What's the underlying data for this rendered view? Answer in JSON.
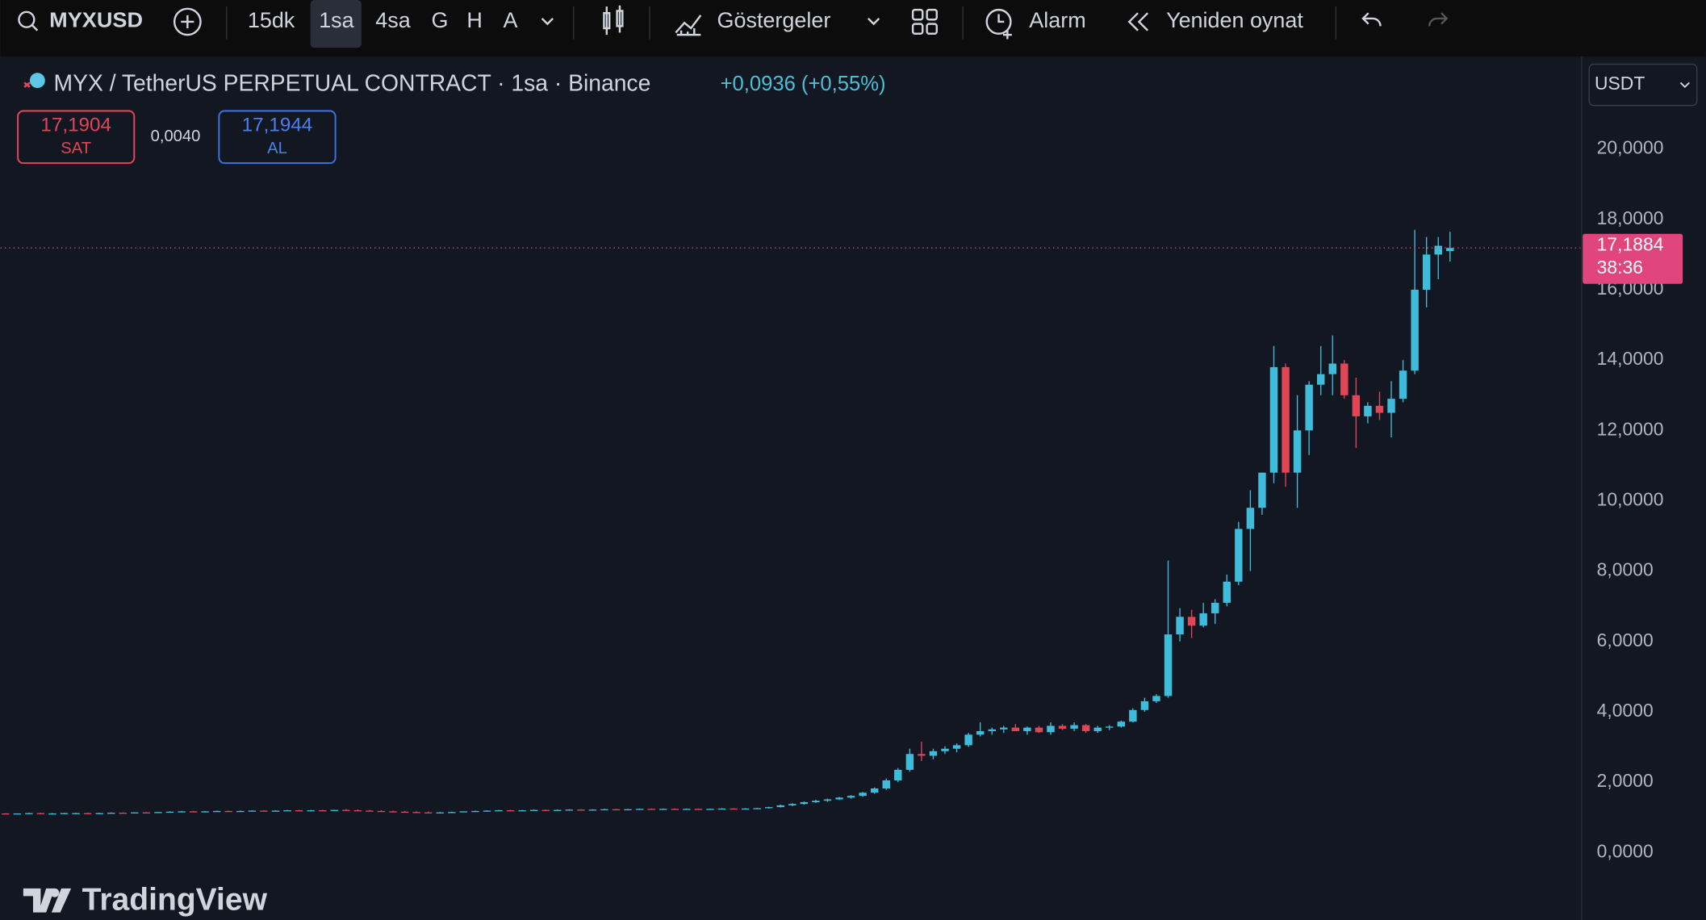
{
  "toolbar": {
    "symbol": "MYXUSD",
    "intervals": [
      "15dk",
      "1sa",
      "4sa",
      "G",
      "H",
      "A"
    ],
    "indicators": "Göstergeler",
    "alarm": "Alarm",
    "replay": "Yeniden oynat"
  },
  "legend": {
    "title": "MYX / TetherUS PERPETUAL CONTRACT · 1sa · Binance",
    "change": "+0,0936 (+0,55%)",
    "sell_price": "17,1904",
    "sell_label": "SAT",
    "spread": "0,0040",
    "buy_price": "17,1944",
    "buy_label": "AL"
  },
  "currency": "USDT",
  "countdown": "38:36",
  "branding": "TradingView",
  "chart_data": {
    "type": "candlestick",
    "up_color": "#3fbcd9",
    "down_color": "#e04656",
    "ylim": [
      -1.92,
      22.63
    ],
    "yticks": [
      {
        "value": 0,
        "label": "0,0000"
      },
      {
        "value": 2,
        "label": "2,0000"
      },
      {
        "value": 4,
        "label": "4,0000"
      },
      {
        "value": 6,
        "label": "6,0000"
      },
      {
        "value": 8,
        "label": "8,0000"
      },
      {
        "value": 10,
        "label": "10,0000"
      },
      {
        "value": 12,
        "label": "12,0000"
      },
      {
        "value": 14,
        "label": "14,0000"
      },
      {
        "value": 16,
        "label": "16,0000"
      },
      {
        "value": 18,
        "label": "18,0000"
      },
      {
        "value": 20,
        "label": "20,0000"
      }
    ],
    "last_price": {
      "value": 17.1884,
      "label": "17,1884"
    },
    "candles": [
      [
        1.1,
        1.12,
        1.09,
        1.11
      ],
      [
        1.11,
        1.12,
        1.1,
        1.1
      ],
      [
        1.1,
        1.11,
        1.09,
        1.11
      ],
      [
        1.11,
        1.13,
        1.1,
        1.12
      ],
      [
        1.12,
        1.13,
        1.1,
        1.11
      ],
      [
        1.11,
        1.12,
        1.1,
        1.11
      ],
      [
        1.11,
        1.13,
        1.1,
        1.12
      ],
      [
        1.12,
        1.13,
        1.11,
        1.12
      ],
      [
        1.12,
        1.13,
        1.11,
        1.11
      ],
      [
        1.11,
        1.13,
        1.1,
        1.12
      ],
      [
        1.12,
        1.14,
        1.11,
        1.13
      ],
      [
        1.13,
        1.14,
        1.12,
        1.12
      ],
      [
        1.12,
        1.14,
        1.11,
        1.14
      ],
      [
        1.14,
        1.15,
        1.13,
        1.13
      ],
      [
        1.13,
        1.15,
        1.12,
        1.15
      ],
      [
        1.15,
        1.17,
        1.14,
        1.16
      ],
      [
        1.16,
        1.18,
        1.15,
        1.17
      ],
      [
        1.17,
        1.18,
        1.15,
        1.16
      ],
      [
        1.16,
        1.18,
        1.15,
        1.17
      ],
      [
        1.17,
        1.19,
        1.16,
        1.18
      ],
      [
        1.18,
        1.19,
        1.16,
        1.17
      ],
      [
        1.17,
        1.19,
        1.16,
        1.18
      ],
      [
        1.18,
        1.2,
        1.17,
        1.19
      ],
      [
        1.19,
        1.2,
        1.17,
        1.18
      ],
      [
        1.18,
        1.2,
        1.17,
        1.19
      ],
      [
        1.19,
        1.21,
        1.18,
        1.2
      ],
      [
        1.2,
        1.21,
        1.18,
        1.19
      ],
      [
        1.19,
        1.21,
        1.18,
        1.2
      ],
      [
        1.2,
        1.21,
        1.18,
        1.19
      ],
      [
        1.19,
        1.21,
        1.18,
        1.21
      ],
      [
        1.21,
        1.23,
        1.19,
        1.2
      ],
      [
        1.2,
        1.22,
        1.18,
        1.19
      ],
      [
        1.19,
        1.21,
        1.17,
        1.18
      ],
      [
        1.18,
        1.2,
        1.16,
        1.17
      ],
      [
        1.17,
        1.19,
        1.15,
        1.16
      ],
      [
        1.16,
        1.18,
        1.14,
        1.15
      ],
      [
        1.15,
        1.17,
        1.13,
        1.14
      ],
      [
        1.14,
        1.16,
        1.12,
        1.13
      ],
      [
        1.13,
        1.15,
        1.11,
        1.14
      ],
      [
        1.14,
        1.16,
        1.13,
        1.15
      ],
      [
        1.15,
        1.17,
        1.14,
        1.17
      ],
      [
        1.17,
        1.19,
        1.16,
        1.18
      ],
      [
        1.18,
        1.2,
        1.17,
        1.19
      ],
      [
        1.19,
        1.21,
        1.18,
        1.2
      ],
      [
        1.2,
        1.21,
        1.18,
        1.19
      ],
      [
        1.19,
        1.21,
        1.18,
        1.2
      ],
      [
        1.2,
        1.22,
        1.19,
        1.21
      ],
      [
        1.21,
        1.22,
        1.19,
        1.2
      ],
      [
        1.2,
        1.22,
        1.19,
        1.21
      ],
      [
        1.21,
        1.23,
        1.2,
        1.22
      ],
      [
        1.22,
        1.23,
        1.2,
        1.21
      ],
      [
        1.21,
        1.23,
        1.2,
        1.22
      ],
      [
        1.22,
        1.24,
        1.21,
        1.23
      ],
      [
        1.23,
        1.24,
        1.21,
        1.22
      ],
      [
        1.22,
        1.24,
        1.21,
        1.23
      ],
      [
        1.23,
        1.25,
        1.22,
        1.24
      ],
      [
        1.24,
        1.25,
        1.22,
        1.23
      ],
      [
        1.23,
        1.25,
        1.22,
        1.24
      ],
      [
        1.24,
        1.25,
        1.22,
        1.23
      ],
      [
        1.23,
        1.25,
        1.22,
        1.24
      ],
      [
        1.24,
        1.25,
        1.22,
        1.23
      ],
      [
        1.23,
        1.25,
        1.22,
        1.24
      ],
      [
        1.24,
        1.26,
        1.23,
        1.25
      ],
      [
        1.25,
        1.26,
        1.23,
        1.24
      ],
      [
        1.24,
        1.26,
        1.23,
        1.25
      ],
      [
        1.25,
        1.27,
        1.24,
        1.26
      ],
      [
        1.26,
        1.3,
        1.25,
        1.29
      ],
      [
        1.29,
        1.36,
        1.28,
        1.34
      ],
      [
        1.34,
        1.4,
        1.32,
        1.38
      ],
      [
        1.38,
        1.45,
        1.36,
        1.43
      ],
      [
        1.43,
        1.5,
        1.41,
        1.47
      ],
      [
        1.47,
        1.53,
        1.44,
        1.51
      ],
      [
        1.51,
        1.58,
        1.49,
        1.56
      ],
      [
        1.56,
        1.63,
        1.53,
        1.61
      ],
      [
        1.61,
        1.72,
        1.58,
        1.7
      ],
      [
        1.7,
        1.85,
        1.67,
        1.82
      ],
      [
        1.82,
        2.1,
        1.78,
        2.05
      ],
      [
        2.05,
        2.4,
        2.0,
        2.35
      ],
      [
        2.35,
        2.95,
        2.3,
        2.8
      ],
      [
        2.8,
        3.15,
        2.6,
        2.75
      ],
      [
        2.75,
        2.95,
        2.65,
        2.88
      ],
      [
        2.88,
        3.02,
        2.8,
        2.95
      ],
      [
        2.95,
        3.1,
        2.85,
        3.05
      ],
      [
        3.05,
        3.4,
        3.0,
        3.35
      ],
      [
        3.35,
        3.7,
        3.3,
        3.45
      ],
      [
        3.45,
        3.55,
        3.35,
        3.5
      ],
      [
        3.5,
        3.6,
        3.4,
        3.55
      ],
      [
        3.55,
        3.65,
        3.45,
        3.45
      ],
      [
        3.45,
        3.58,
        3.35,
        3.55
      ],
      [
        3.55,
        3.6,
        3.4,
        3.42
      ],
      [
        3.42,
        3.7,
        3.35,
        3.6
      ],
      [
        3.6,
        3.65,
        3.48,
        3.52
      ],
      [
        3.52,
        3.7,
        3.45,
        3.62
      ],
      [
        3.62,
        3.65,
        3.4,
        3.45
      ],
      [
        3.45,
        3.6,
        3.4,
        3.55
      ],
      [
        3.55,
        3.62,
        3.48,
        3.58
      ],
      [
        3.58,
        3.75,
        3.55,
        3.72
      ],
      [
        3.72,
        4.1,
        3.7,
        4.05
      ],
      [
        4.05,
        4.4,
        4.0,
        4.3
      ],
      [
        4.3,
        4.5,
        4.25,
        4.45
      ],
      [
        4.45,
        8.3,
        4.4,
        6.2
      ],
      [
        6.2,
        6.95,
        6.0,
        6.7
      ],
      [
        6.7,
        6.9,
        6.1,
        6.45
      ],
      [
        6.45,
        7.1,
        6.4,
        6.8
      ],
      [
        6.8,
        7.2,
        6.5,
        7.1
      ],
      [
        7.1,
        7.9,
        7.0,
        7.7
      ],
      [
        7.7,
        9.4,
        7.6,
        9.2
      ],
      [
        9.2,
        10.3,
        8.0,
        9.8
      ],
      [
        9.8,
        10.8,
        9.6,
        10.8
      ],
      [
        10.8,
        14.4,
        10.5,
        13.8
      ],
      [
        13.8,
        13.9,
        10.4,
        10.8
      ],
      [
        10.8,
        13.0,
        9.8,
        12.0
      ],
      [
        12.0,
        13.4,
        11.3,
        13.3
      ],
      [
        13.3,
        14.4,
        13.0,
        13.6
      ],
      [
        13.6,
        14.7,
        13.0,
        13.9
      ],
      [
        13.9,
        14.0,
        12.9,
        13.0
      ],
      [
        13.0,
        13.5,
        11.5,
        12.4
      ],
      [
        12.4,
        12.8,
        12.2,
        12.7
      ],
      [
        12.7,
        13.1,
        12.3,
        12.5
      ],
      [
        12.5,
        13.4,
        11.8,
        12.9
      ],
      [
        12.9,
        14.0,
        12.8,
        13.7
      ],
      [
        13.7,
        17.7,
        13.6,
        16.0
      ],
      [
        16.0,
        17.5,
        15.5,
        17.0
      ],
      [
        17.0,
        17.5,
        16.3,
        17.25
      ],
      [
        17.1,
        17.65,
        16.8,
        17.1884
      ]
    ]
  }
}
